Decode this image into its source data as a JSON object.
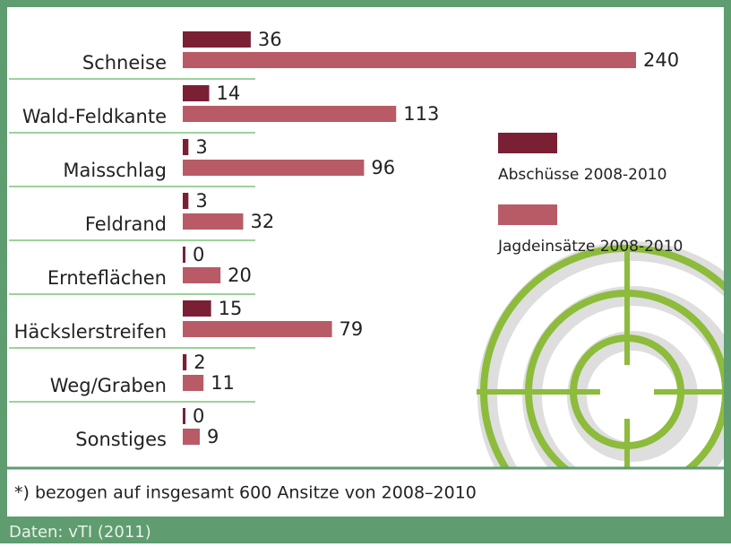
{
  "chart_data": {
    "type": "hbar",
    "categories": [
      "Schneise",
      "Wald-Feldkante",
      "Maisschlag",
      "Feldrand",
      "Ernteflächen",
      "Häckslerstreifen",
      "Weg/Graben",
      "Sonstiges"
    ],
    "series": [
      {
        "name": "Abschüsse 2008-2010",
        "color": "#7b1f35",
        "values": [
          36,
          14,
          3,
          3,
          0,
          15,
          2,
          0
        ]
      },
      {
        "name": "Jagdeinsätze 2008-2010",
        "color": "#b95b67",
        "values": [
          240,
          113,
          96,
          32,
          20,
          79,
          11,
          9
        ]
      }
    ],
    "footnote": "*) bezogen auf insgesamt 600 Ansitze von 2008–2010",
    "source": "Daten: vTI (2011)"
  }
}
